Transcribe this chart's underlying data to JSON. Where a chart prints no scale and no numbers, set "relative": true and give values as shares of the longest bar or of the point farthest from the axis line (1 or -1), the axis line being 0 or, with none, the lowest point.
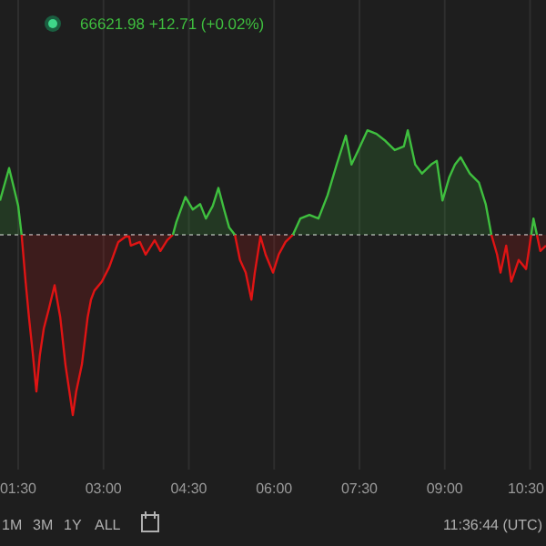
{
  "chart_data": {
    "type": "area",
    "relative": true,
    "x": [
      1.18,
      1.34,
      1.44,
      1.5,
      1.56,
      1.63,
      1.69,
      1.76,
      1.82,
      1.88,
      1.95,
      2.04,
      2.14,
      2.24,
      2.33,
      2.4,
      2.46,
      2.52,
      2.62,
      2.72,
      2.78,
      2.84,
      2.97,
      3.1,
      3.26,
      3.39,
      3.42,
      3.45,
      3.48,
      3.64,
      3.74,
      3.9,
      4.0,
      4.12,
      4.22,
      4.28,
      4.44,
      4.57,
      4.7,
      4.8,
      4.92,
      5.02,
      5.12,
      5.21,
      5.31,
      5.4,
      5.5,
      5.6,
      5.66,
      5.76,
      5.85,
      5.98,
      6.08,
      6.2,
      6.33,
      6.46,
      6.62,
      6.78,
      6.94,
      7.1,
      7.26,
      7.36,
      7.48,
      7.64,
      7.8,
      7.96,
      8.12,
      8.28,
      8.35,
      8.48,
      8.6,
      8.76,
      8.86,
      8.96,
      9.08,
      9.18,
      9.28,
      9.44,
      9.6,
      9.72,
      9.82,
      9.92,
      9.98,
      10.08,
      10.17,
      10.3,
      10.43,
      10.52,
      10.56,
      10.62,
      10.68,
      10.78
    ],
    "series": [
      {
        "color": "#3fbf3f",
        "values": [
          0.19,
          0.37,
          0.24,
          0.16,
          0,
          null,
          null,
          null,
          null,
          null,
          null,
          null,
          null,
          null,
          null,
          null,
          null,
          null,
          null,
          null,
          null,
          null,
          null,
          null,
          null,
          null,
          null,
          null,
          null,
          null,
          null,
          null,
          null,
          null,
          0,
          0.07,
          0.21,
          0.14,
          0.17,
          0.09,
          0.16,
          0.26,
          0.14,
          0.04,
          0,
          null,
          null,
          null,
          null,
          null,
          null,
          null,
          null,
          null,
          0,
          0.09,
          0.11,
          0.09,
          0.22,
          0.39,
          0.55,
          0.39,
          0.47,
          0.58,
          0.56,
          0.52,
          0.47,
          0.49,
          0.58,
          0.39,
          0.34,
          0.39,
          0.41,
          0.19,
          0.32,
          0.39,
          0.43,
          0.34,
          0.29,
          0.17,
          0,
          null,
          null,
          null,
          null,
          null,
          null,
          0,
          0.09,
          0,
          null,
          null
        ]
      },
      {
        "color": "#e01414",
        "values": [
          null,
          null,
          null,
          null,
          0,
          -0.26,
          -0.46,
          -0.67,
          -0.87,
          -0.67,
          -0.52,
          -0.41,
          -0.28,
          -0.46,
          -0.72,
          -0.87,
          -1,
          -0.87,
          -0.72,
          -0.46,
          -0.36,
          -0.31,
          -0.26,
          -0.18,
          -0.04,
          -0.01,
          -0.01,
          -0.01,
          -0.06,
          -0.04,
          -0.11,
          -0.03,
          -0.09,
          -0.03,
          0,
          null,
          null,
          null,
          null,
          null,
          null,
          null,
          null,
          null,
          0,
          -0.14,
          -0.21,
          -0.36,
          -0.21,
          -0.01,
          -0.11,
          -0.21,
          -0.11,
          -0.04,
          0,
          null,
          null,
          null,
          null,
          null,
          null,
          null,
          null,
          null,
          null,
          null,
          null,
          null,
          null,
          null,
          null,
          null,
          null,
          null,
          null,
          null,
          null,
          null,
          null,
          null,
          0,
          -0.11,
          -0.21,
          -0.06,
          -0.26,
          -0.14,
          -0.19,
          0,
          null,
          0,
          -0.09,
          -0.06
        ]
      }
    ],
    "xlim": [
      1.18,
      10.78
    ],
    "xticks": [
      {
        "value": 1.5,
        "label": "01:30"
      },
      {
        "value": 3,
        "label": "03:00"
      },
      {
        "value": 4.5,
        "label": "04:30"
      },
      {
        "value": 6,
        "label": "06:00"
      },
      {
        "value": 7.5,
        "label": "07:30"
      },
      {
        "value": 9,
        "label": "09:00"
      },
      {
        "value": 10.5,
        "label": "10:30"
      }
    ],
    "grid": "x",
    "legend": false,
    "ref_lines": [
      {
        "axis": "y",
        "value": 0,
        "color": "#8a8a8a",
        "line_style": "dotted"
      }
    ],
    "annotations": [
      "66621.98 +12.71 (+0.02%)",
      "1M",
      "3M",
      "1Y",
      "ALL",
      "11:36:44 (UTC)"
    ]
  }
}
